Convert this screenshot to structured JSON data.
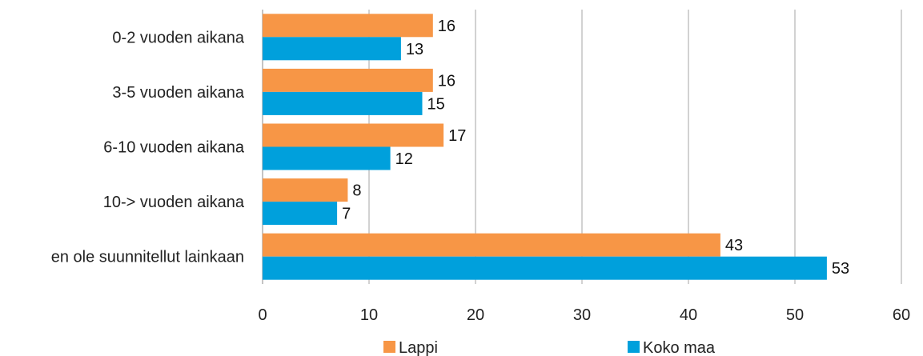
{
  "chart_data": {
    "type": "bar",
    "orientation": "horizontal",
    "categories": [
      "0-2 vuoden aikana",
      "3-5 vuoden aikana",
      "6-10 vuoden aikana",
      "10-> vuoden aikana",
      "en ole suunnitellut lainkaan"
    ],
    "series": [
      {
        "name": "Lappi",
        "values": [
          16,
          16,
          17,
          8,
          43
        ],
        "color": "#f79646"
      },
      {
        "name": "Koko maa",
        "values": [
          13,
          15,
          12,
          7,
          53
        ],
        "color": "#00a0dc"
      }
    ],
    "xlim": [
      0,
      60
    ],
    "xticks": [
      "0",
      "10",
      "20",
      "30",
      "40",
      "50",
      "60"
    ],
    "grid": true,
    "legend_position": "bottom"
  }
}
